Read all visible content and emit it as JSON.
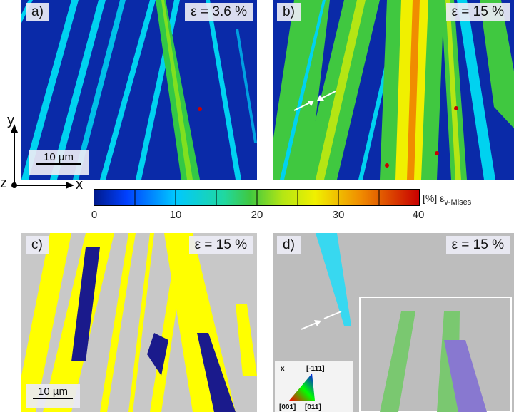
{
  "panels": [
    {
      "label": "a)",
      "strain": "ε = 3.6 %"
    },
    {
      "label": "b)",
      "strain": "ε = 15 %"
    },
    {
      "label": "c)",
      "strain": "ε = 15 %"
    },
    {
      "label": "d)",
      "strain": "ε = 15 %"
    }
  ],
  "scalebar_top": "10 µm",
  "scalebar_bottom": "10 µm",
  "axes": {
    "y": "y",
    "x": "x",
    "z": "z"
  },
  "colorbar": {
    "ticks": [
      "0",
      "10",
      "20",
      "30",
      "40"
    ],
    "unit": "[%]",
    "quantity": "ε",
    "quantity_sub": "v-Mises",
    "colors": [
      "#001a8c",
      "#0040ff",
      "#00c8ff",
      "#20d8a0",
      "#40c840",
      "#b4e614",
      "#f0f000",
      "#f08c00",
      "#c80000"
    ]
  },
  "ipf_legend": {
    "corner_top": "[-111]",
    "corner_left": "[001]",
    "corner_right": "[011]",
    "axis": "x"
  },
  "colors": {
    "map_background": "#0a2aa8",
    "band_cyan": "#00d2f0",
    "band_green": "#32c846",
    "band_yellow": "#f2f000",
    "phase_blue": "#1a1a8c",
    "phase_yellow": "#ffff00"
  }
}
